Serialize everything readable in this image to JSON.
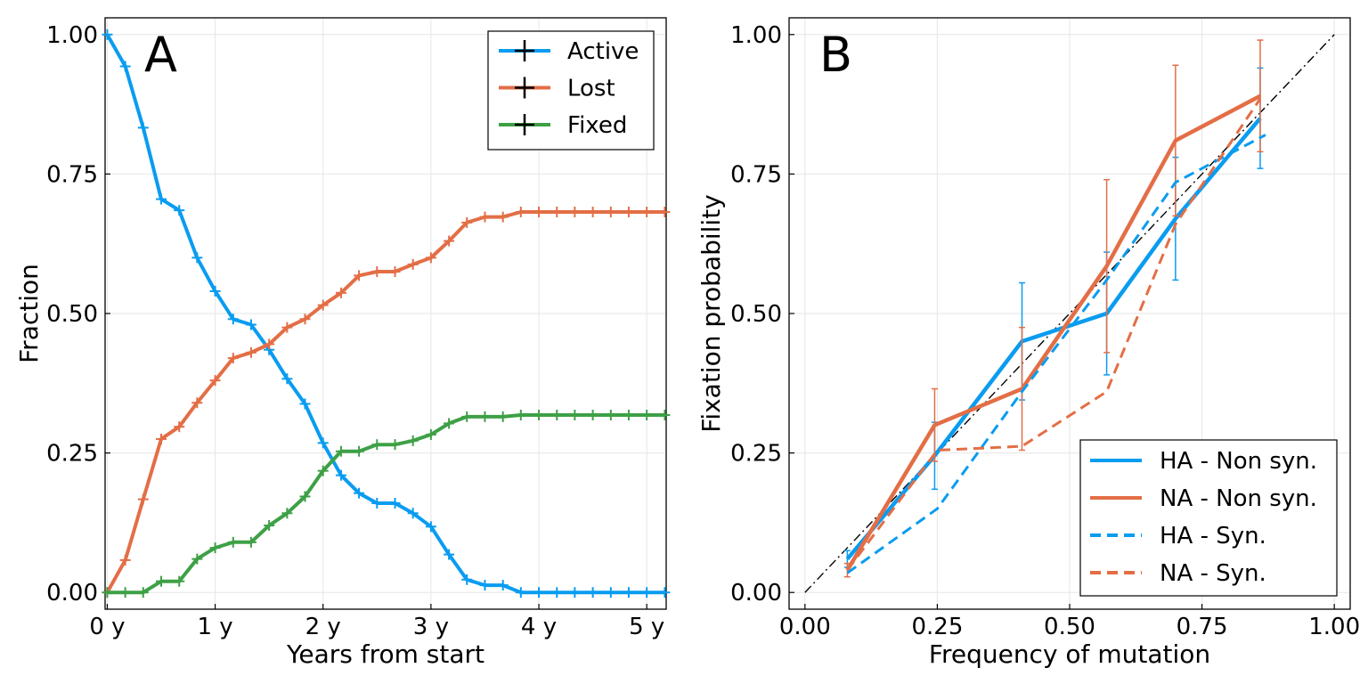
{
  "colors": {
    "blue": "#0a9cf0",
    "orange": "#e36e46",
    "green": "#3ea046",
    "refline": "#000000"
  },
  "chart_data": [
    {
      "panel": "A",
      "type": "line",
      "xlabel": "Years from start",
      "ylabel": "Fraction",
      "xlim": [
        -0.02,
        5.18
      ],
      "ylim": [
        -0.03,
        1.03
      ],
      "xticks": [
        0,
        1,
        2,
        3,
        4,
        5
      ],
      "xtick_labels": [
        "0 y",
        "1 y",
        "2 y",
        "3 y",
        "4 y",
        "5 y"
      ],
      "yticks": [
        0,
        0.25,
        0.5,
        0.75,
        1
      ],
      "ytick_labels": [
        "0.00",
        "0.25",
        "0.50",
        "0.75",
        "1.00"
      ],
      "grid": true,
      "legend_position": "top-right",
      "x": [
        0,
        0.167,
        0.333,
        0.5,
        0.667,
        0.833,
        1,
        1.167,
        1.333,
        1.5,
        1.667,
        1.833,
        2,
        2.167,
        2.333,
        2.5,
        2.667,
        2.833,
        3,
        3.167,
        3.333,
        3.5,
        3.667,
        3.833,
        4,
        4.167,
        4.333,
        4.5,
        4.667,
        4.833,
        5,
        5.167
      ],
      "series": [
        {
          "name": "Active",
          "color": "#0a9cf0",
          "values": [
            1.0,
            0.943,
            0.833,
            0.705,
            0.685,
            0.6,
            0.54,
            0.49,
            0.48,
            0.435,
            0.383,
            0.338,
            0.268,
            0.21,
            0.178,
            0.16,
            0.16,
            0.142,
            0.118,
            0.068,
            0.023,
            0.013,
            0.013,
            0.0,
            0.0,
            0.0,
            0.0,
            0.0,
            0.0,
            0.0,
            0.0,
            0.0
          ]
        },
        {
          "name": "Lost",
          "color": "#e36e46",
          "values": [
            0.0,
            0.058,
            0.167,
            0.275,
            0.297,
            0.34,
            0.38,
            0.42,
            0.43,
            0.445,
            0.475,
            0.49,
            0.515,
            0.537,
            0.568,
            0.575,
            0.575,
            0.588,
            0.6,
            0.63,
            0.663,
            0.673,
            0.673,
            0.682,
            0.682,
            0.682,
            0.682,
            0.682,
            0.682,
            0.682,
            0.682,
            0.682
          ]
        },
        {
          "name": "Fixed",
          "color": "#3ea046",
          "values": [
            0.0,
            0.0,
            0.0,
            0.02,
            0.02,
            0.06,
            0.08,
            0.09,
            0.09,
            0.12,
            0.142,
            0.172,
            0.218,
            0.253,
            0.253,
            0.265,
            0.265,
            0.272,
            0.283,
            0.303,
            0.315,
            0.315,
            0.315,
            0.318,
            0.318,
            0.318,
            0.318,
            0.318,
            0.318,
            0.318,
            0.318,
            0.318
          ]
        }
      ]
    },
    {
      "panel": "B",
      "type": "line",
      "xlabel": "Frequency of mutation",
      "ylabel": "Fixation probability",
      "xlim": [
        -0.03,
        1.03
      ],
      "ylim": [
        -0.03,
        1.03
      ],
      "xticks": [
        0,
        0.25,
        0.5,
        0.75,
        1
      ],
      "xtick_labels": [
        "0.00",
        "0.25",
        "0.50",
        "0.75",
        "1.00"
      ],
      "yticks": [
        0,
        0.25,
        0.5,
        0.75,
        1
      ],
      "ytick_labels": [
        "0.00",
        "0.25",
        "0.50",
        "0.75",
        "1.00"
      ],
      "grid": true,
      "legend_position": "bottom-right",
      "reference_line": {
        "x": [
          0,
          1
        ],
        "y": [
          0,
          1
        ],
        "style": "dash-dot",
        "color": "#000000"
      },
      "series": [
        {
          "name": "HA - Non syn.",
          "color": "#0a9cf0",
          "dash": "solid",
          "x": [
            0.08,
            0.245,
            0.41,
            0.57,
            0.7,
            0.86
          ],
          "y": [
            0.06,
            0.245,
            0.45,
            0.5,
            0.67,
            0.85
          ],
          "err": [
            0.015,
            0.06,
            0.105,
            0.11,
            0.11,
            0.09
          ]
        },
        {
          "name": "NA - Non syn.",
          "color": "#e36e46",
          "dash": "solid",
          "x": [
            0.08,
            0.245,
            0.41,
            0.57,
            0.7,
            0.86
          ],
          "y": [
            0.04,
            0.3,
            0.365,
            0.585,
            0.81,
            0.89
          ],
          "err": [
            0.012,
            0.065,
            0.11,
            0.155,
            0.135,
            0.1
          ]
        },
        {
          "name": "HA - Syn.",
          "color": "#0a9cf0",
          "dash": "dashed",
          "x": [
            0.08,
            0.25,
            0.41,
            0.57,
            0.7,
            0.87
          ],
          "y": [
            0.035,
            0.15,
            0.36,
            0.56,
            0.735,
            0.82
          ],
          "err": []
        },
        {
          "name": "NA - Syn.",
          "color": "#e36e46",
          "dash": "dashed",
          "x": [
            0.08,
            0.25,
            0.41,
            0.57,
            0.7,
            0.86
          ],
          "y": [
            0.04,
            0.255,
            0.262,
            0.36,
            0.66,
            0.885
          ],
          "err": []
        }
      ]
    }
  ]
}
